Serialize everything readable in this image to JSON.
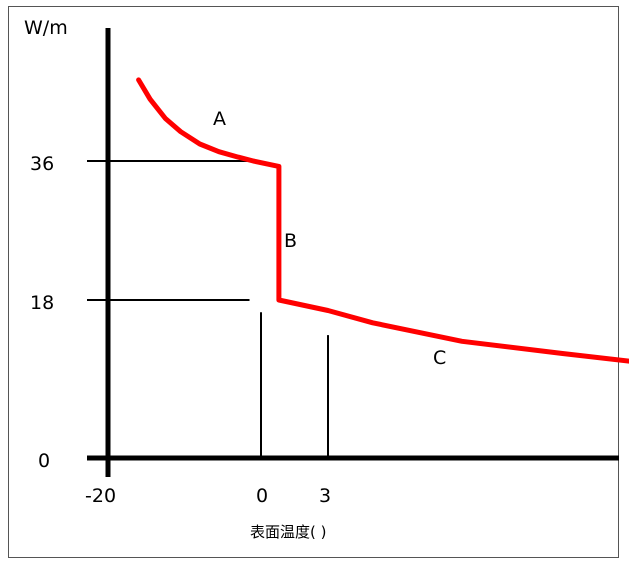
{
  "chart_data": {
    "type": "line",
    "ylabel": "W/m",
    "xlabel": "表面温度(   )",
    "x_ticks": [
      "-20",
      "0",
      "3"
    ],
    "y_ticks": [
      "36",
      "18",
      "0"
    ],
    "segment_labels": [
      "A",
      "B",
      "C"
    ],
    "series": [
      {
        "color": "#ff0000",
        "points": [
          {
            "x": -16.0,
            "y": 46.5
          },
          {
            "x": -14.5,
            "y": 44.0
          },
          {
            "x": -12.5,
            "y": 41.5
          },
          {
            "x": -10.5,
            "y": 39.8
          },
          {
            "x": -8.0,
            "y": 38.2
          },
          {
            "x": -5.5,
            "y": 37.2
          },
          {
            "x": -3.0,
            "y": 36.5
          },
          {
            "x": -1.0,
            "y": 36.0
          },
          {
            "x": 0.8,
            "y": 35.3
          },
          {
            "x": 0.8,
            "y": 18.0
          },
          {
            "x": 3.0,
            "y": 16.8
          },
          {
            "x": 5.0,
            "y": 15.4
          },
          {
            "x": 9.0,
            "y": 13.3
          },
          {
            "x": 13.5,
            "y": 11.9
          },
          {
            "x": 18.0,
            "y": 10.6
          },
          {
            "x": 23.0,
            "y": 9.5
          },
          {
            "x": 28.0,
            "y": 8.6
          },
          {
            "x": 33.0,
            "y": 8.0
          },
          {
            "x": 38.0,
            "y": 7.5
          },
          {
            "x": 43.0,
            "y": 7.2
          }
        ]
      }
    ],
    "reference_values": [
      {
        "axis": "y",
        "value": 36
      },
      {
        "axis": "y",
        "value": 18
      },
      {
        "axis": "x",
        "value": 0
      },
      {
        "axis": "x",
        "value": 3
      }
    ]
  }
}
